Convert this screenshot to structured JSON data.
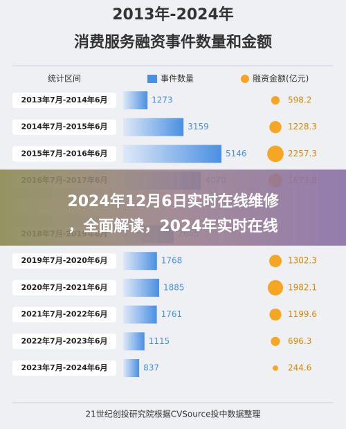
{
  "chart_data": {
    "type": "bar",
    "title": "2013年-2024年",
    "subtitle": "消费服务融资事件数量和金额",
    "headers": [
      "统计区间",
      "事件数量",
      "融资金额(亿元)"
    ],
    "categories": [
      "2013年7月-2014年6月",
      "2014年7月-2015年6月",
      "2015年7月-2016年6月",
      "2016年7月-2017年6月",
      null,
      "2018年7月-2019年6月",
      "2019年7月-2020年6月",
      "2020年7月-2021年6月",
      "2021年7月-2022年6月",
      "2022年7月-2023年6月",
      "2023年7月-2024年6月"
    ],
    "series": [
      {
        "name": "事件数量",
        "color": "#4a90e2",
        "values": [
          1273,
          3159,
          5146,
          4070,
          null,
          2645,
          1768,
          1885,
          1761,
          1115,
          837
        ]
      },
      {
        "name": "融资金额(亿元)",
        "color": "#f5a623",
        "values": [
          598.2,
          1228.3,
          2257.3,
          1673.8,
          null,
          null,
          1302.3,
          1982.1,
          1199.6,
          696.3,
          244.6
        ]
      }
    ],
    "source": "21世纪创投研究院根据CVSource投中数据整理",
    "overlay": [
      "2024年12月6日实时在线维修",
      "，全面解读，2024年实时在线"
    ]
  }
}
